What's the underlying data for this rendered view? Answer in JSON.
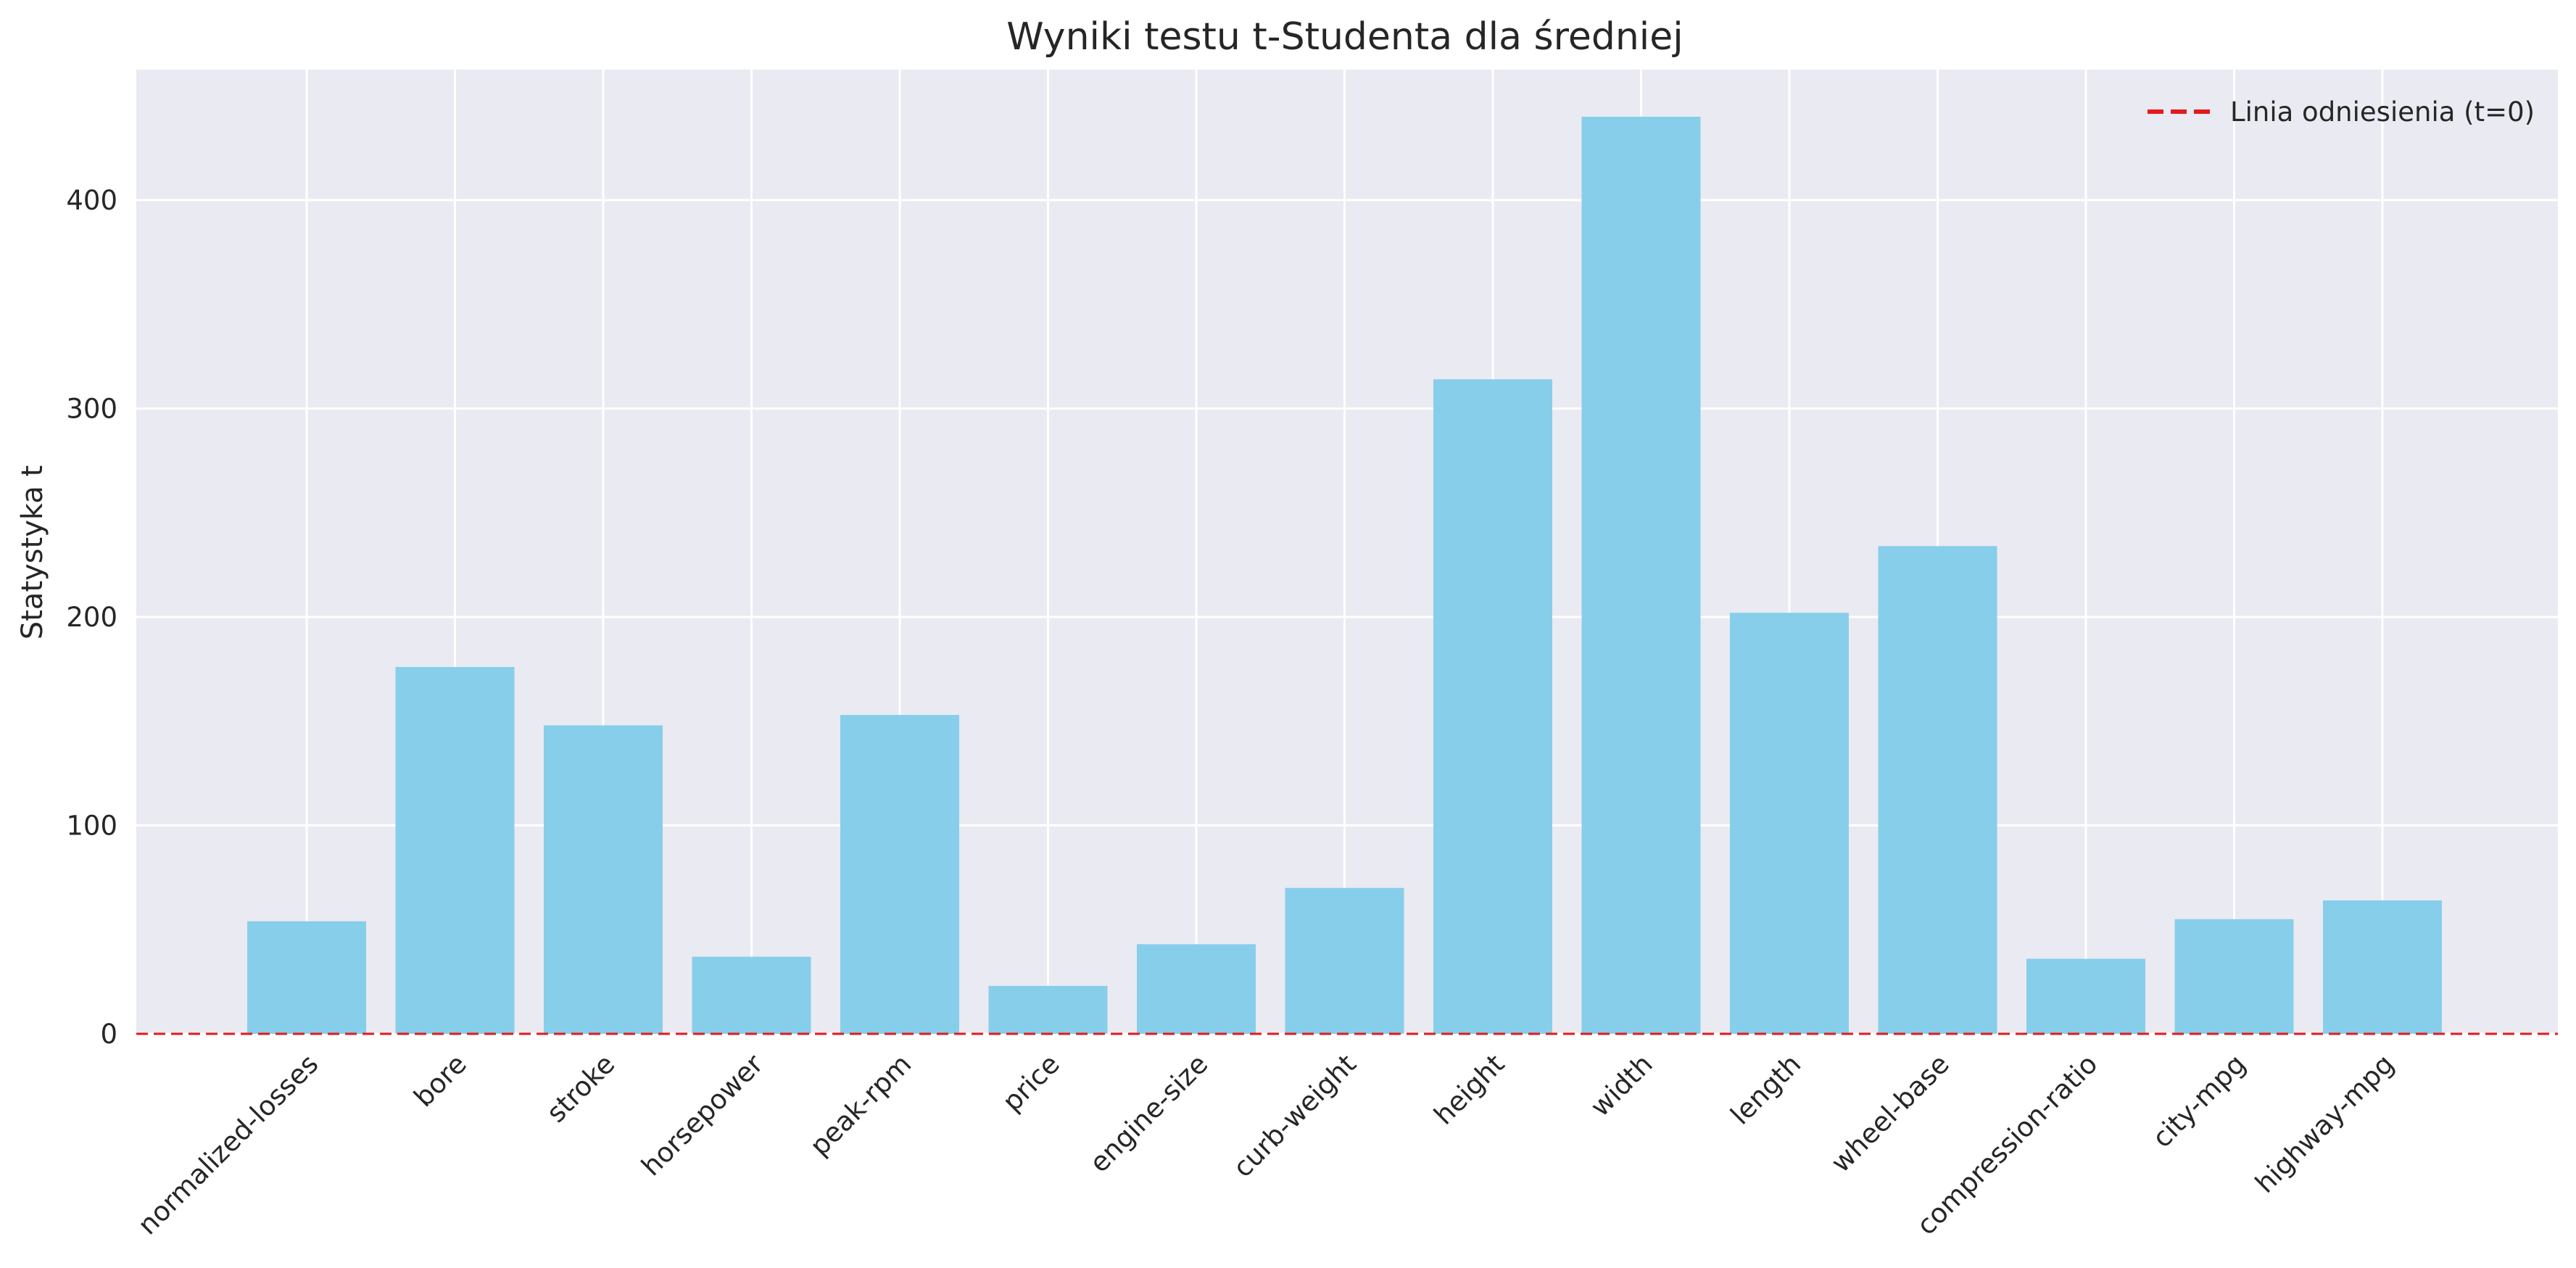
{
  "chart_data": {
    "type": "bar",
    "title": "Wyniki testu t-Studenta dla średniej",
    "xlabel": "",
    "ylabel": "Statystyka t",
    "categories": [
      "normalized-losses",
      "bore",
      "stroke",
      "horsepower",
      "peak-rpm",
      "price",
      "engine-size",
      "curb-weight",
      "height",
      "width",
      "length",
      "wheel-base",
      "compression-ratio",
      "city-mpg",
      "highway-mpg"
    ],
    "values": [
      54,
      176,
      148,
      37,
      153,
      23,
      43,
      70,
      314,
      440,
      202,
      234,
      36,
      55,
      64
    ],
    "ylim": [
      0,
      460
    ],
    "yticks": [
      0,
      100,
      200,
      300,
      400
    ],
    "grid": true,
    "bar_color": "#87CEEB",
    "background_color": "#EAEAF2",
    "reference_line": {
      "y": 0,
      "color": "#E31A1C",
      "style": "dashed",
      "label": "Linia odniesienia (t=0)"
    },
    "legend": {
      "placement": "top-right",
      "entries": [
        "Linia odniesienia (t=0)"
      ]
    }
  }
}
